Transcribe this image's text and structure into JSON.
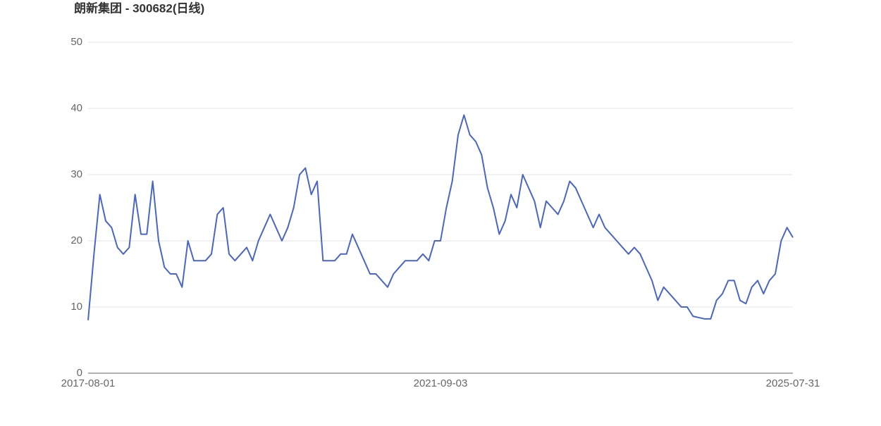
{
  "chart_data": {
    "type": "line",
    "title": "朗新集团 - 300682(日线)",
    "categories": [
      "2017-08-01",
      null,
      null,
      null,
      null,
      null,
      null,
      null,
      null,
      null,
      null,
      null,
      null,
      null,
      null,
      null,
      null,
      null,
      null,
      null,
      null,
      null,
      null,
      null,
      null,
      null,
      null,
      null,
      null,
      null,
      null,
      null,
      null,
      null,
      null,
      null,
      null,
      null,
      null,
      null,
      null,
      null,
      null,
      null,
      null,
      null,
      null,
      null,
      null,
      null,
      null,
      null,
      null,
      null,
      null,
      null,
      null,
      null,
      null,
      null,
      "2021-09-03",
      null,
      null,
      null,
      null,
      null,
      null,
      null,
      null,
      null,
      null,
      null,
      null,
      null,
      null,
      null,
      null,
      null,
      null,
      null,
      null,
      null,
      null,
      null,
      null,
      null,
      null,
      null,
      null,
      null,
      null,
      null,
      null,
      null,
      null,
      null,
      null,
      null,
      null,
      null,
      null,
      null,
      null,
      null,
      null,
      null,
      null,
      null,
      null,
      null,
      null,
      null,
      null,
      null,
      null,
      null,
      null,
      null,
      null,
      null,
      "2025-07-31"
    ],
    "series": [
      {
        "color": "#4a66c4",
        "values": [
          8,
          18,
          27,
          23,
          22,
          19,
          18,
          19,
          27,
          21,
          21,
          29,
          20,
          16,
          15,
          15,
          13,
          20,
          17,
          17,
          17,
          18,
          24,
          25,
          18,
          17,
          18,
          19,
          17,
          20,
          22,
          24,
          22,
          20,
          22,
          25,
          30,
          31,
          27,
          29,
          17,
          17,
          17,
          18,
          18,
          21,
          19,
          17,
          15,
          15,
          14,
          13,
          15,
          16,
          17,
          17,
          17,
          18,
          17,
          20,
          20,
          25,
          29,
          36,
          39,
          36,
          35,
          33,
          28,
          25,
          21,
          23,
          27,
          25,
          30,
          28,
          26,
          22,
          26,
          25,
          24,
          26,
          29,
          28,
          26,
          24,
          22,
          24,
          22,
          21,
          20,
          19,
          18,
          19,
          18,
          16,
          14,
          11,
          13,
          12,
          11,
          10,
          10,
          8.6,
          8.4,
          8.2,
          8.2,
          11,
          12,
          14,
          14,
          11,
          10.5,
          13,
          14,
          12,
          14,
          15,
          20,
          22,
          20.5
        ]
      }
    ],
    "ylim": [
      0,
      50
    ],
    "yticks": [
      0,
      10,
      20,
      30,
      40,
      50
    ],
    "grid": true
  }
}
